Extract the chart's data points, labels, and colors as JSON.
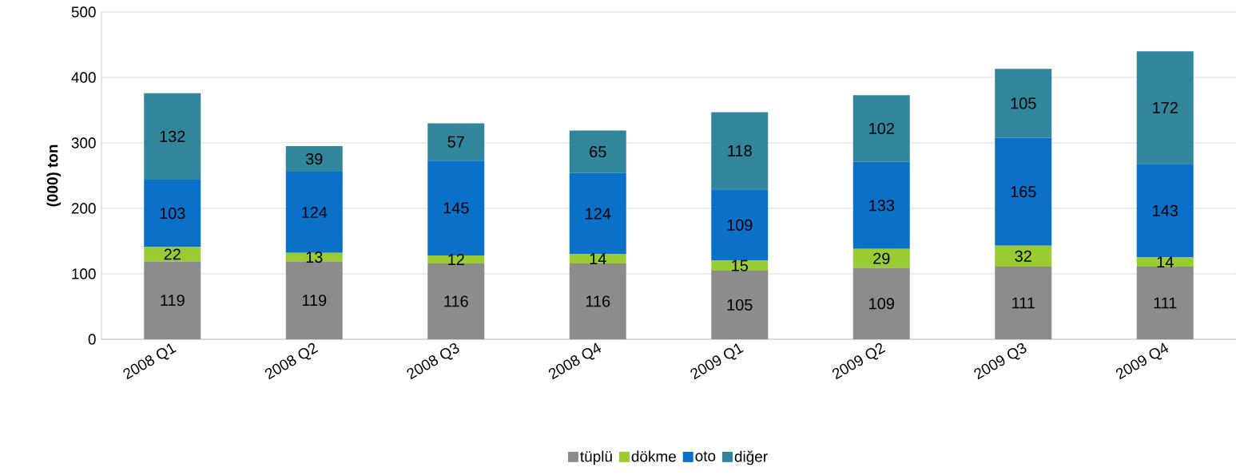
{
  "chart_data": {
    "type": "bar",
    "stacked": true,
    "ylabel": "(000) ton",
    "categories": [
      "2008 Q1",
      "2008 Q2",
      "2008 Q3",
      "2008 Q4",
      "2009 Q1",
      "2009 Q2",
      "2009 Q3",
      "2009 Q4"
    ],
    "series": [
      {
        "name": "tüplü",
        "color": "#8c8c8c",
        "values": [
          119,
          119,
          116,
          116,
          105,
          109,
          111,
          111
        ]
      },
      {
        "name": "dökme",
        "color": "#99cc33",
        "values": [
          22,
          13,
          12,
          14,
          15,
          29,
          32,
          14
        ]
      },
      {
        "name": "oto",
        "color": "#0a70c8",
        "values": [
          103,
          124,
          145,
          124,
          109,
          133,
          165,
          143
        ]
      },
      {
        "name": "diğer",
        "color": "#31869b",
        "values": [
          132,
          39,
          57,
          65,
          118,
          102,
          105,
          172
        ]
      }
    ],
    "ylim": [
      0,
      500
    ],
    "yticks": [
      0,
      100,
      200,
      300,
      400,
      500
    ],
    "grid": "y",
    "legend": "bottom",
    "data_labels": true
  }
}
